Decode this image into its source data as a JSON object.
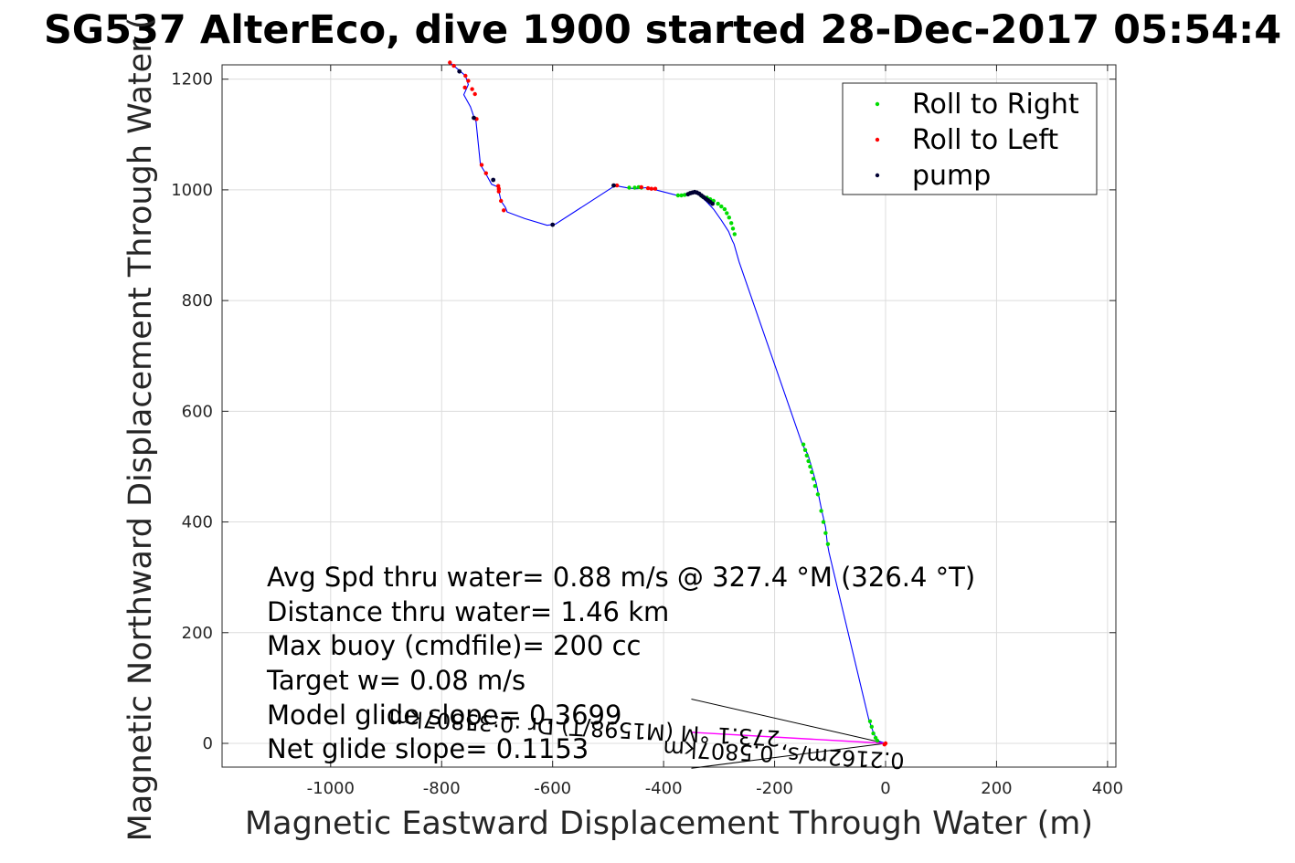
{
  "chart_data": {
    "type": "line",
    "title": "SG537 AlterEco, dive 1900 started 28-Dec-2017 05:54:4",
    "xlabel": "Magnetic Eastward Displacement Through Water (m)",
    "ylabel": "Magnetic Northward Displacement Through Water (",
    "xlim": [
      -1200,
      410
    ],
    "ylim": [
      -42,
      1230
    ],
    "xticks": [
      -1000,
      -800,
      -600,
      -400,
      -200,
      0,
      200,
      400
    ],
    "yticks": [
      0,
      200,
      400,
      600,
      800,
      1000,
      1200
    ],
    "grid": true,
    "legend_position": "top-right",
    "track": {
      "color": "#0000ff",
      "x": [
        -785,
        -778,
        -765,
        -757,
        -752,
        -760,
        -748,
        -742,
        -738,
        -730,
        -722,
        -710,
        -698,
        -697,
        -693,
        -685,
        -682,
        -650,
        -610,
        -595,
        -487,
        -478,
        -462,
        -448,
        -432,
        -418,
        -375,
        -355,
        -345,
        -335,
        -322,
        -310,
        -296,
        -283,
        -276,
        -273,
        -264,
        -150,
        -140,
        -132,
        -125,
        -115,
        -108,
        -105,
        -102,
        -30,
        -22,
        -15,
        0
      ],
      "y": [
        1230,
        1224,
        1213,
        1206,
        1190,
        1172,
        1150,
        1132,
        1123,
        1045,
        1032,
        1010,
        1005,
        998,
        980,
        968,
        960,
        948,
        936,
        938,
        1008,
        1006,
        1003,
        1002,
        1004,
        1001,
        990,
        994,
        996,
        990,
        978,
        965,
        945,
        925,
        908,
        902,
        870,
        540,
        522,
        495,
        470,
        420,
        390,
        362,
        345,
        42,
        20,
        5,
        0
      ]
    },
    "series": [
      {
        "name": "Roll to Right",
        "color": "#00dd00",
        "x": [
          -272,
          -275,
          -278,
          -282,
          -286,
          -290,
          -296,
          -302,
          -310,
          -316,
          -322,
          -330,
          -368,
          -362,
          -374,
          -462,
          -452,
          -445,
          -440,
          -148,
          -145,
          -142,
          -139,
          -136,
          -133,
          -130,
          -127,
          -122,
          -116,
          -112,
          -108,
          -104,
          -28,
          -25,
          -22,
          -18,
          -15
        ],
        "y": [
          920,
          930,
          940,
          950,
          958,
          965,
          970,
          975,
          980,
          983,
          986,
          988,
          990,
          991,
          990,
          1004,
          1004,
          1005,
          1004,
          540,
          530,
          520,
          510,
          500,
          490,
          478,
          465,
          450,
          420,
          400,
          380,
          360,
          40,
          30,
          18,
          10,
          5
        ]
      },
      {
        "name": "Roll to Left",
        "color": "#ff0000",
        "x": [
          -785,
          -778,
          -757,
          -752,
          -758,
          -745,
          -740,
          -737,
          -728,
          -720,
          -698,
          -697,
          -697,
          -693,
          -688,
          -484,
          -440,
          -428,
          -422,
          -415,
          -2,
          0
        ],
        "y": [
          1230,
          1224,
          1206,
          1197,
          1185,
          1182,
          1173,
          1128,
          1045,
          1030,
          1007,
          1002,
          997,
          980,
          963,
          1008,
          1005,
          1003,
          1002,
          1002,
          -2,
          0
        ]
      },
      {
        "name": "pump",
        "color": "#000033",
        "x": [
          -356,
          -352,
          -348,
          -344,
          -340,
          -336,
          -332,
          -328,
          -324,
          -320,
          -316,
          -312,
          -768,
          -742,
          -707,
          -600,
          -490
        ],
        "y": [
          992,
          994,
          995,
          996,
          995,
          993,
          990,
          987,
          984,
          981,
          978,
          975,
          1214,
          1130,
          1018,
          937,
          1008
        ]
      }
    ],
    "current_arrow": {
      "color": "#ff00ff",
      "x": [
        0,
        -350
      ],
      "y": [
        0,
        20
      ]
    },
    "arrow_guides": {
      "x": [
        -350,
        -350
      ],
      "y": [
        80,
        -45
      ]
    },
    "annotations": [
      "Avg Spd thru water=  0.88 m/s @ 327.4 °M (326.4 °T)",
      "Distance thru water=  1.46 km",
      "Max buoy (cmdfile)= 200 cc",
      "Target w= 0.08 m/s",
      "Model glide slope= 0.3699",
      "Net glide slope= 0.1153"
    ],
    "current_labels": [
      "0.2162m/s, 0.5807km",
      "273.1 °M (M1598/T)  Dr :0:35807km"
    ]
  }
}
